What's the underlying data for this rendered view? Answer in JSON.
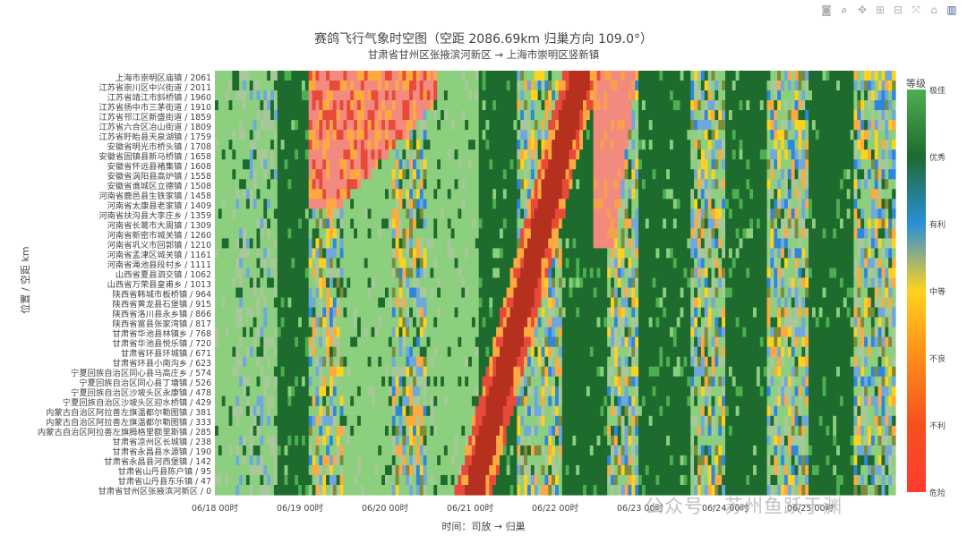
{
  "toolbar": {
    "icons": [
      "camera-icon",
      "zoom-icon",
      "pan-icon",
      "zoom-in-icon",
      "zoom-out-icon",
      "autoscale-icon",
      "home-icon",
      "plotly-logo-icon"
    ]
  },
  "watermark": "公众号 · 苏州鱼跃于渊",
  "chart_data": {
    "type": "heatmap",
    "title": "赛鸽飞行气象时空图（空距 2086.69km 归巢方向 109.0°）",
    "subtitle": "甘肃省甘州区张掖滨河新区 → 上海市崇明区竖新镇",
    "xlabel": "时间：司放 → 归巢",
    "ylabel": "位置 / 空距 km",
    "x_ticks": [
      "06/18 00时",
      "06/19 00时",
      "06/20 00时",
      "06/21 00时",
      "06/22 00时",
      "06/23 00时",
      "06/24 00时",
      "06/25 00时"
    ],
    "y_ticks": [
      "上海市崇明区庙镇 / 2061",
      "江苏省崇川区中兴街道 / 2011",
      "江苏省靖江市斜桥镇 / 1960",
      "江苏省扬中市三茅街道 / 1910",
      "江苏省邗江区新盛街道 / 1859",
      "江苏省六合区冶山街道 / 1809",
      "江苏省盱眙县天泉湖镇 / 1759",
      "安徽省明光市桥头镇 / 1708",
      "安徽省固镇县新马桥镇 / 1658",
      "安徽省怀远县褚集镇 / 1608",
      "安徽省涡阳县高炉镇 / 1558",
      "安徽省谯城区立德镇 / 1508",
      "河南省鹿邑县生铁家镇 / 1458",
      "河南省太康县老家镇 / 1409",
      "河南省扶沟县大李庄乡 / 1359",
      "河南省长葛市大周镇 / 1309",
      "河南省新密市城关镇 / 1260",
      "河南省巩义市回郭镇 / 1210",
      "河南省孟津区城关镇 / 1161",
      "河南省渑池县段村乡 / 1111",
      "山西省夏县泗交镇 / 1062",
      "山西省万荣县皇甫乡 / 1013",
      "陕西省韩城市板桥镇 / 964",
      "陕西省黄龙县石堡镇 / 915",
      "陕西省洛川县永乡镇 / 866",
      "陕西省富县张家湾镇 / 817",
      "甘肃省华池县林镇乡 / 768",
      "甘肃省华池县悦乐镇 / 720",
      "甘肃省环县环城镇 / 671",
      "甘肃省环县小南沟乡 / 623",
      "宁夏回族自治区同心县马高庄乡 / 574",
      "宁夏回族自治区同心县丁塘镇 / 526",
      "宁夏回族自治区沙坡头区永康镇 / 478",
      "宁夏回族自治区沙坡头区迎水桥镇 / 429",
      "内蒙古自治区阿拉善左旗温都尔勒图镇 / 381",
      "内蒙古自治区阿拉善左旗温都尔勒图镇 / 333",
      "内蒙古自治区阿拉善左旗腾格里额里斯镇 / 285",
      "甘肃省凉州区长城镇 / 238",
      "甘肃省永昌县水源镇 / 190",
      "甘肃省永昌县河西堡镇 / 142",
      "甘肃省山丹县陈户镇 / 95",
      "甘肃省山丹县东乐镇 / 47",
      "甘肃省甘州区张掖滨河新区 / 0"
    ],
    "x_range_days": [
      0,
      8
    ],
    "n_time_steps": 196,
    "colorbar": {
      "title": "等级",
      "labels": [
        "极佳",
        "优秀",
        "有利",
        "中等",
        "不良",
        "不利",
        "危险"
      ],
      "colors": [
        "#4caf50",
        "#1e6b2e",
        "#2a8fd8",
        "#ffd21f",
        "#ff8c1a",
        "#f4511e",
        "#ff3b30"
      ]
    },
    "level_colors": {
      "0": "#8ccf7e",
      "1": "#1e6b2e",
      "2": "#4caf50",
      "3": "#2e86de",
      "4": "#6fa8dc",
      "5": "#ffd21f",
      "6": "#ffa940",
      "7": "#f9a04a",
      "8": "#e84a3a",
      "9": "#f28a80",
      "10": "#b5301f",
      "11": "#7d8b3a",
      "12": "#a9c89a"
    },
    "bands": [
      {
        "from": 0.0,
        "to": 0.25,
        "level": "light-green"
      },
      {
        "from": 0.25,
        "to": 0.75,
        "level": "mixed-green"
      },
      {
        "from": 0.75,
        "to": 1.1,
        "level": "dark-green"
      },
      {
        "from": 1.1,
        "to": 1.5,
        "level": "mixed"
      },
      {
        "from": 1.5,
        "to": 2.1,
        "level": "light-green"
      },
      {
        "from": 2.1,
        "to": 2.5,
        "level": "mixed"
      },
      {
        "from": 2.5,
        "to": 3.1,
        "level": "light-green"
      },
      {
        "from": 3.1,
        "to": 3.55,
        "level": "dark-green"
      },
      {
        "from": 3.55,
        "to": 4.1,
        "level": "mixed"
      },
      {
        "from": 4.1,
        "to": 4.6,
        "level": "dark-green"
      },
      {
        "from": 4.6,
        "to": 5.0,
        "level": "mixed"
      },
      {
        "from": 5.0,
        "to": 5.6,
        "level": "dark-green"
      },
      {
        "from": 5.6,
        "to": 6.0,
        "level": "mixed"
      },
      {
        "from": 6.0,
        "to": 6.5,
        "level": "dark-green"
      },
      {
        "from": 6.5,
        "to": 7.0,
        "level": "mixed"
      },
      {
        "from": 7.0,
        "to": 7.5,
        "level": "dark-green"
      },
      {
        "from": 7.5,
        "to": 8.0,
        "level": "mixed"
      }
    ]
  }
}
